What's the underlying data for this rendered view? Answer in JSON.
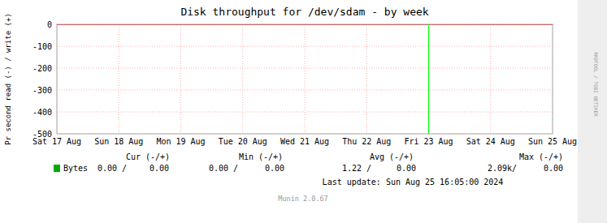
{
  "chart_data": {
    "type": "line",
    "title": "Disk throughput for /dev/sdam - by week",
    "y_label": "Pr second read (-) / write (+)",
    "categories": [
      "Sat 17 Aug",
      "Sun 18 Aug",
      "Mon 19 Aug",
      "Tue 20 Aug",
      "Wed 21 Aug",
      "Thu 22 Aug",
      "Fri 23 Aug",
      "Sat 24 Aug",
      "Sun 25 Aug"
    ],
    "series": [
      {
        "name": "Bytes",
        "color": "#00AA00",
        "values": [
          null,
          null,
          null,
          null,
          null,
          null,
          null,
          null,
          null
        ],
        "summary_values": [
          "0.00 /",
          "0.00",
          "0.00 /",
          "0.00",
          "1.22 /",
          "0.00",
          "2.09k/",
          "0.00"
        ]
      }
    ],
    "summary_headers": [
      "Cur (-/+)",
      "Min (-/+)",
      "Avg (-/+)",
      "Max (-/+)"
    ],
    "ylim": [
      -500,
      0
    ],
    "yticks": [
      0,
      -100,
      -200,
      -300,
      -400,
      -500
    ],
    "grid": true,
    "reference_lines": [
      {
        "axis": "y",
        "value": 0,
        "color": "#CC0000"
      },
      {
        "axis": "x",
        "value": "Fri 23 Aug",
        "color": "#00FF00"
      }
    ],
    "footer": [
      "Last update:  Sun Aug 25 16:05:00 2024",
      "Munin 2.0.67"
    ],
    "watermark": "RRDTOOL / TOBI OETIKER"
  }
}
